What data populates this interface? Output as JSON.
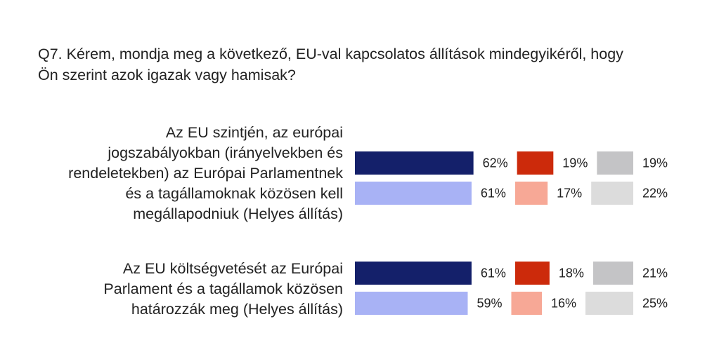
{
  "question": {
    "line1": "Q7. Kérem, mondja meg a következő, EU-val kapcsolatos állítások mindegyikéről, hogy",
    "line2": "Ön szerint azok igazak vagy hamisak?"
  },
  "colors": {
    "true_dark": "#14206a",
    "true_light": "#a8b2f5",
    "false_dark": "#cc2a0b",
    "false_light": "#f7a896",
    "dk_dark": "#c4c4c6",
    "dk_light": "#dcdcdc"
  },
  "chart_data": {
    "type": "bar",
    "orientation": "horizontal",
    "stacked_groups": false,
    "categories": [
      "Az EU szintjén, az európai jogszabályokban (irányelvekben és rendeletekben) az Európai Parlamentnek és a tagállamoknak közösen kell megállapodniuk (Helyes állítás)",
      "Az EU költségvetését az Európai Parlament és a tagállamok közösen határozzák meg (Helyes állítás)"
    ],
    "category_lines": [
      [
        "Az EU szintjén, az európai",
        "jogszabályokban (irányelvekben és",
        "rendeletekben) az Európai Parlamentnek",
        "és a tagállamoknak közösen kell",
        "megállapodniuk (Helyes állítás)"
      ],
      [
        "Az EU költségvetését az Európai",
        "Parlament és a tagállamok közösen",
        "határozzák meg (Helyes állítás)"
      ]
    ],
    "rows": [
      {
        "category": 0,
        "shade": "dark",
        "values": [
          62,
          19,
          19
        ],
        "labels": [
          "62%",
          "19%",
          "19%"
        ]
      },
      {
        "category": 0,
        "shade": "light",
        "values": [
          61,
          17,
          22
        ],
        "labels": [
          "61%",
          "17%",
          "22%"
        ]
      },
      {
        "category": 1,
        "shade": "dark",
        "values": [
          61,
          18,
          21
        ],
        "labels": [
          "61%",
          "18%",
          "21%"
        ]
      },
      {
        "category": 1,
        "shade": "light",
        "values": [
          59,
          16,
          25
        ],
        "labels": [
          "59%",
          "16%",
          "25%"
        ]
      }
    ],
    "unit": "%",
    "grid": false
  }
}
